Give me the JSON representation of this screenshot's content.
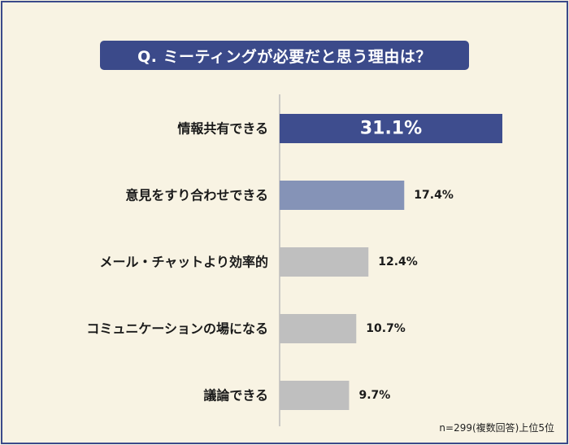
{
  "title": "Q. ミーティングが必要だと思う理由は？",
  "note": "n=299(複数回答)上位5位",
  "colors": {
    "frame": "#3b4a8a",
    "background": "#f8f3e3",
    "title_bg": "#3b4a8a",
    "title_text": "#ffffff",
    "axis": "#bdbdbd",
    "bar_top": "#3e4d8e",
    "bar_second": "#8593b7",
    "bar_other": "#bfbfbf"
  },
  "chart_data": {
    "type": "bar",
    "orientation": "horizontal",
    "categories": [
      "情報共有できる",
      "意見をすり合わせできる",
      "メール・チャットより効率的",
      "コミュニケーションの場になる",
      "議論できる"
    ],
    "values": [
      31.1,
      17.4,
      12.4,
      10.7,
      9.7
    ],
    "value_labels": [
      "31.1%",
      "17.4%",
      "12.4%",
      "10.7%",
      "9.7%"
    ],
    "unit": "%",
    "xlim": [
      0,
      35
    ],
    "grid": false,
    "legend": "none"
  }
}
